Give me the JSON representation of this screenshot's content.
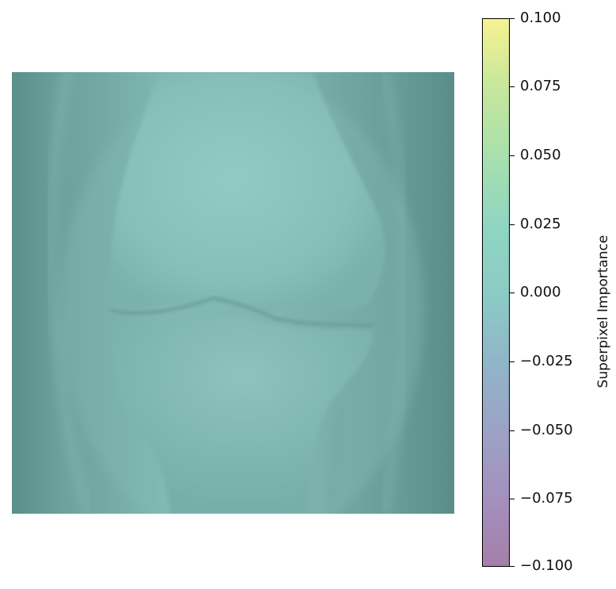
{
  "image": {
    "subject": "knee-xray-overlay",
    "tint_color": "#7bb4ae"
  },
  "colorbar": {
    "label": "Superpixel Importance",
    "ticks": [
      "0.100",
      "0.075",
      "0.050",
      "0.025",
      "0.000",
      "−0.025",
      "−0.050",
      "−0.075",
      "−0.100"
    ],
    "range": [
      -0.1,
      0.1
    ],
    "colormap_top": "#f7f291",
    "colormap_mid": "#8bccc4",
    "colormap_bottom": "#a57fa8"
  }
}
